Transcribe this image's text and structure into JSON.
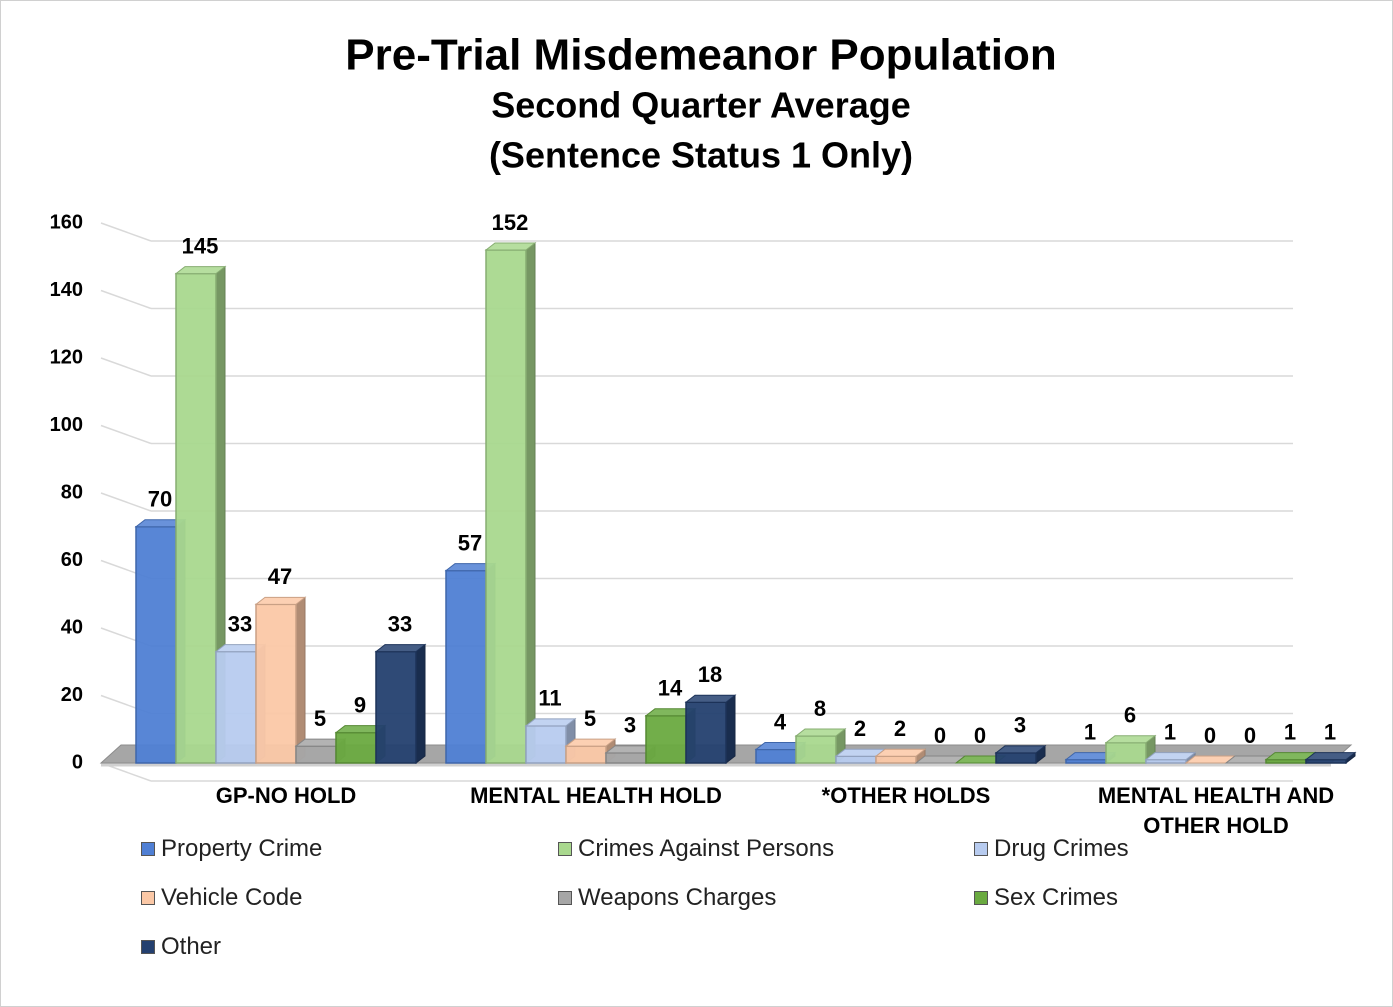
{
  "chart_data": {
    "type": "bar3d",
    "title": "Pre-Trial Misdemeanor Population",
    "subtitle": [
      "Second Quarter Average",
      "(Sentence Status 1 Only)"
    ],
    "categories": [
      "GP-NO HOLD",
      "MENTAL HEALTH HOLD",
      "*OTHER HOLDS",
      "MENTAL HEALTH AND OTHER HOLD"
    ],
    "series": [
      {
        "name": "Property Crime",
        "color": "#4f7fd4",
        "values": [
          70,
          57,
          4,
          1
        ]
      },
      {
        "name": "Crimes Against Persons",
        "color": "#a9d88e",
        "values": [
          145,
          152,
          8,
          6
        ]
      },
      {
        "name": "Drug Crimes",
        "color": "#b7cbef",
        "values": [
          33,
          11,
          2,
          1
        ]
      },
      {
        "name": "Vehicle Code",
        "color": "#fbc8a6",
        "values": [
          47,
          5,
          2,
          0
        ]
      },
      {
        "name": "Weapons Charges",
        "color": "#a6a6a6",
        "values": [
          5,
          3,
          0,
          0
        ]
      },
      {
        "name": "Sex Crimes",
        "color": "#6aaa40",
        "values": [
          9,
          14,
          0,
          1
        ]
      },
      {
        "name": "Other",
        "color": "#24406f",
        "values": [
          33,
          18,
          3,
          1
        ]
      }
    ],
    "ylim": [
      0,
      160
    ],
    "yticks": [
      0,
      20,
      40,
      60,
      80,
      100,
      120,
      140,
      160
    ],
    "grid": true,
    "legend": "bottom"
  }
}
